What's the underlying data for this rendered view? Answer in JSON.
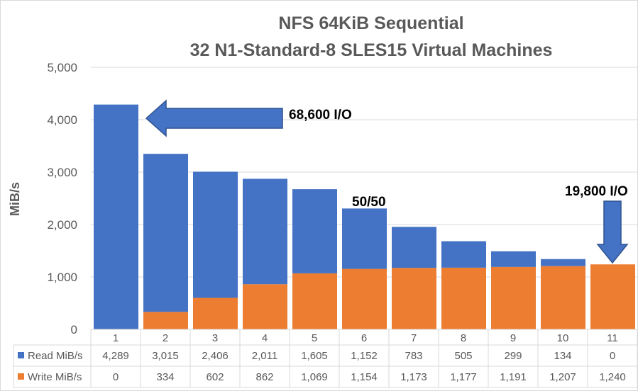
{
  "chart_data": {
    "type": "bar",
    "stacked": true,
    "title": "NFS 64KiB Sequential",
    "subtitle": "32 N1-Standard-8 SLES15 Virtual Machines",
    "xlabel": "",
    "ylabel": "MiB/s",
    "ylim": [
      0,
      5000
    ],
    "yticks": [
      "0",
      "1,000",
      "2,000",
      "3,000",
      "4,000",
      "5,000"
    ],
    "ytick_values": [
      0,
      1000,
      2000,
      3000,
      4000,
      5000
    ],
    "grid": true,
    "legend": "data-table",
    "categories": [
      "1",
      "2",
      "3",
      "4",
      "5",
      "6",
      "7",
      "8",
      "9",
      "10",
      "11"
    ],
    "series": [
      {
        "name": "Write MiB/s",
        "color": "#ED7D31",
        "values": [
          0,
          334,
          602,
          862,
          1069,
          1154,
          1173,
          1177,
          1191,
          1207,
          1240
        ],
        "labels": [
          "0",
          "334",
          "602",
          "862",
          "1,069",
          "1,154",
          "1,173",
          "1,177",
          "1,191",
          "1,207",
          "1,240"
        ]
      },
      {
        "name": "Read MiB/s",
        "color": "#4472C4",
        "values": [
          4289,
          3015,
          2406,
          2011,
          1605,
          1152,
          783,
          505,
          299,
          134,
          0
        ],
        "labels": [
          "4,289",
          "3,015",
          "2,406",
          "2,011",
          "1,605",
          "1,152",
          "783",
          "505",
          "299",
          "134",
          "0"
        ]
      }
    ],
    "annotations": [
      {
        "text": "68,600 I/O",
        "category": "1",
        "arrow": "left"
      },
      {
        "text": "50/50",
        "category": "6"
      },
      {
        "text": "19,800 I/O",
        "category": "11",
        "arrow": "down"
      }
    ]
  }
}
